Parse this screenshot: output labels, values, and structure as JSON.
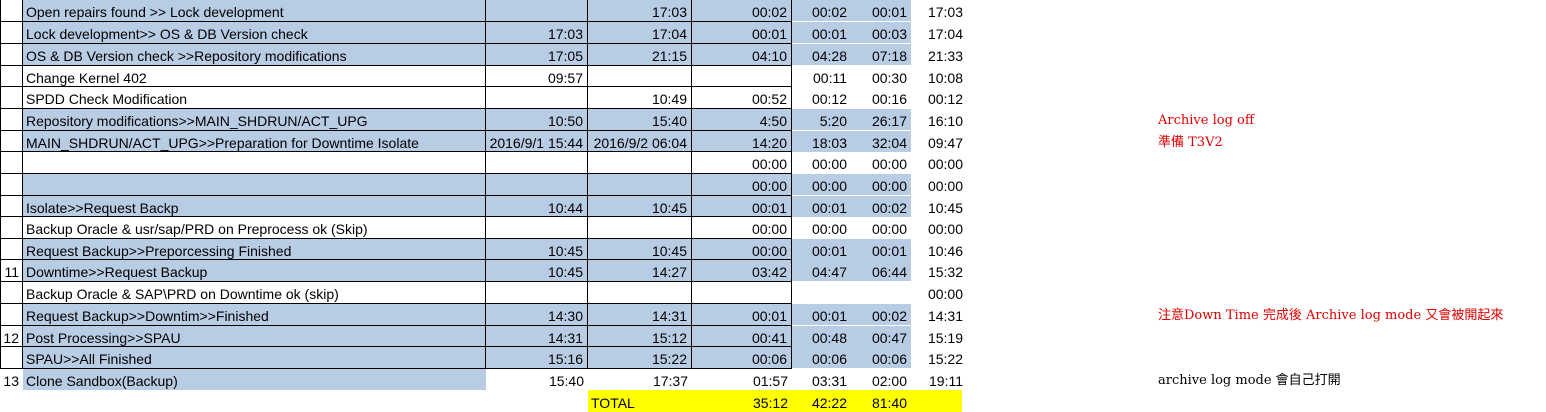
{
  "sheet": {
    "rows": [
      {
        "num": "",
        "task": "Open repairs found >> Lock development",
        "start": "",
        "end": "17:03",
        "dur": "00:02",
        "v1": "00:02",
        "v2": "00:01",
        "v3": "17:03",
        "shade": true,
        "note": "",
        "note_color": ""
      },
      {
        "num": "",
        "task": "Lock development>> OS & DB Version check",
        "start": "17:03",
        "end": "17:04",
        "dur": "00:01",
        "v1": "00:01",
        "v2": "00:03",
        "v3": "17:04",
        "shade": true,
        "note": "",
        "note_color": ""
      },
      {
        "num": "",
        "task": " OS & DB Version check >>Repository modifications",
        "start": "17:05",
        "end": "21:15",
        "dur": "04:10",
        "v1": "04:28",
        "v2": "07:18",
        "v3": "21:33",
        "shade": true,
        "note": "",
        "note_color": ""
      },
      {
        "num": "",
        "task": "Change Kernel 402",
        "start": "09:57",
        "end": "",
        "dur": "",
        "v1": "00:11",
        "v2": "00:30",
        "v3": "10:08",
        "shade": false,
        "note": "",
        "note_color": ""
      },
      {
        "num": "",
        "task": "SPDD Check Modification",
        "start": "",
        "end": "10:49",
        "dur": "00:52",
        "v1": "00:12",
        "v2": "00:16",
        "v3": "00:12",
        "shade": false,
        "note": "",
        "note_color": ""
      },
      {
        "num": "",
        "task": "Repository modifications>>MAIN_SHDRUN/ACT_UPG",
        "start": "10:50",
        "end": "15:40",
        "dur": "4:50",
        "v1": "5:20",
        "v2": "26:17",
        "v3": "16:10",
        "shade": true,
        "note": "Archive log off",
        "note_color": "red"
      },
      {
        "num": "",
        "task": "MAIN_SHDRUN/ACT_UPG>>Preparation for Downtime Isolate",
        "start": "2016/9/1 15:44",
        "end": "2016/9/2 06:04",
        "dur": "14:20",
        "v1": "18:03",
        "v2": "32:04",
        "v3": "09:47",
        "shade": true,
        "note": "準備 T3V2",
        "note_color": "red"
      },
      {
        "num": "",
        "task": "",
        "start": "",
        "end": "",
        "dur": "00:00",
        "v1": "00:00",
        "v2": "00:00",
        "v3": "00:00",
        "shade": false,
        "note": "",
        "note_color": ""
      },
      {
        "num": "",
        "task": "",
        "start": "",
        "end": "",
        "dur": "00:00",
        "v1": "00:00",
        "v2": "00:00",
        "v3": "00:00",
        "shade": true,
        "note": "",
        "note_color": ""
      },
      {
        "num": "",
        "task": "Isolate>>Request Backp",
        "start": "10:44",
        "end": "10:45",
        "dur": "00:01",
        "v1": "00:01",
        "v2": "00:02",
        "v3": "10:45",
        "shade": true,
        "note": "",
        "note_color": ""
      },
      {
        "num": "",
        "task": "Backup Oracle & usr/sap/PRD on Preprocess ok (Skip)",
        "start": "",
        "end": "",
        "dur": "00:00",
        "v1": "00:00",
        "v2": "00:00",
        "v3": "00:00",
        "shade": false,
        "note": "",
        "note_color": ""
      },
      {
        "num": "",
        "task": "Request Backup>>Preporcessing Finished",
        "start": "10:45",
        "end": "10:45",
        "dur": "00:00",
        "v1": "00:01",
        "v2": "00:01",
        "v3": "10:46",
        "shade": true,
        "note": "",
        "note_color": ""
      },
      {
        "num": "11",
        "task": "Downtime>>Request Backup",
        "start": "10:45",
        "end": "14:27",
        "dur": "03:42",
        "v1": "04:47",
        "v2": "06:44",
        "v3": "15:32",
        "shade": true,
        "note": "",
        "note_color": ""
      },
      {
        "num": "",
        "task": "Backup Oracle & SAP\\PRD on Downtime ok (skip)",
        "start": "",
        "end": "",
        "dur": "",
        "v1": "",
        "v2": "",
        "v3": "00:00",
        "shade": false,
        "note": "",
        "note_color": ""
      },
      {
        "num": "",
        "task": "Request Backup>>Downtim>>Finished",
        "start": "14:30",
        "end": "14:31",
        "dur": "00:01",
        "v1": "00:01",
        "v2": "00:02",
        "v3": "14:31",
        "shade": true,
        "note": "注意Down Time 完成後 Archive log mode 又會被開起來",
        "note_color": "red"
      },
      {
        "num": "12",
        "task": "Post Processing>>SPAU",
        "start": "14:31",
        "end": "15:12",
        "dur": "00:41",
        "v1": "00:48",
        "v2": "00:47",
        "v3": "15:19",
        "shade": true,
        "note": "",
        "note_color": ""
      },
      {
        "num": "",
        "task": "SPAU>>All Finished",
        "start": "15:16",
        "end": "15:22",
        "dur": "00:06",
        "v1": "00:06",
        "v2": "00:06",
        "v3": "15:22",
        "shade": true,
        "note": "",
        "note_color": ""
      },
      {
        "num": "13",
        "task": "Clone Sandbox(Backup)",
        "start": "15:40",
        "end": "17:37",
        "dur": "01:57",
        "v1": "03:31",
        "v2": "02:00",
        "v3": "19:11",
        "shade": true,
        "note": "archive log mode 會自己打開",
        "note_color": "black"
      }
    ],
    "total": {
      "label": "TOTAL",
      "dur": "35:12",
      "v1": "42:22",
      "v2": "81:40"
    },
    "colors": {
      "row_shade": "#b8cce4",
      "total_highlight": "#ffff00",
      "note_red": "#e00000"
    }
  }
}
